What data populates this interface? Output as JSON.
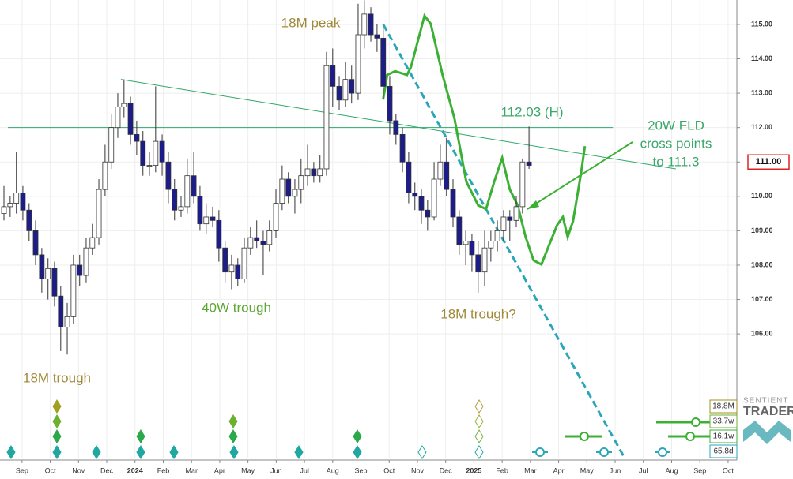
{
  "chart_data": {
    "type": "candlestick",
    "xlim": [
      -0.78,
      25.31
    ],
    "ylim": [
      102.4,
      115.71
    ],
    "grid": true,
    "xticks": [
      {
        "value": 0,
        "label": "Sep"
      },
      {
        "value": 1,
        "label": "Oct"
      },
      {
        "value": 2,
        "label": "Nov"
      },
      {
        "value": 3,
        "label": "Dec"
      },
      {
        "value": 4,
        "label": "2024"
      },
      {
        "value": 5,
        "label": "Feb"
      },
      {
        "value": 6,
        "label": "Mar"
      },
      {
        "value": 7,
        "label": "Apr"
      },
      {
        "value": 8,
        "label": "May"
      },
      {
        "value": 9,
        "label": "Jun"
      },
      {
        "value": 10,
        "label": "Jul"
      },
      {
        "value": 11,
        "label": "Aug"
      },
      {
        "value": 12,
        "label": "Sep"
      },
      {
        "value": 13,
        "label": "Oct"
      },
      {
        "value": 14,
        "label": "Nov"
      },
      {
        "value": 15,
        "label": "Dec"
      },
      {
        "value": 16,
        "label": "2025"
      },
      {
        "value": 17,
        "label": "Feb"
      },
      {
        "value": 18,
        "label": "Mar"
      },
      {
        "value": 19,
        "label": "Apr"
      },
      {
        "value": 20,
        "label": "May"
      },
      {
        "value": 21,
        "label": "Jun"
      },
      {
        "value": 22,
        "label": "Jul"
      },
      {
        "value": 23,
        "label": "Aug"
      },
      {
        "value": 24,
        "label": "Sep"
      },
      {
        "value": 25,
        "label": "Oct"
      }
    ],
    "yticks": [
      {
        "value": 106,
        "label": "106.00"
      },
      {
        "value": 107,
        "label": "107.00"
      },
      {
        "value": 108,
        "label": "108.00"
      },
      {
        "value": 109,
        "label": "109.00"
      },
      {
        "value": 110,
        "label": "110.00"
      },
      {
        "value": 111,
        "label": "111.00"
      },
      {
        "value": 112,
        "label": "112.00"
      },
      {
        "value": 113,
        "label": "113.00"
      },
      {
        "value": 114,
        "label": "114.00"
      },
      {
        "value": 115,
        "label": "115.00"
      }
    ],
    "last_price": {
      "value": 111.0,
      "label": "111.00"
    },
    "up_color": "#ffffff",
    "down_color": "#1c1c8a",
    "ohlc": [
      [
        -0.64,
        109.5,
        110.3,
        109.3,
        109.7
      ],
      [
        -0.42,
        109.7,
        110.0,
        109.4,
        109.8
      ],
      [
        -0.2,
        109.8,
        111.3,
        109.5,
        110.1
      ],
      [
        0.03,
        110.1,
        110.3,
        109.3,
        109.6
      ],
      [
        0.25,
        109.6,
        109.8,
        108.7,
        109.0
      ],
      [
        0.48,
        109.0,
        109.3,
        108.0,
        108.3
      ],
      [
        0.7,
        108.3,
        108.5,
        107.2,
        107.6
      ],
      [
        0.92,
        107.6,
        108.2,
        107.0,
        107.9
      ],
      [
        1.15,
        107.9,
        108.1,
        106.8,
        107.1
      ],
      [
        1.37,
        107.1,
        107.4,
        105.5,
        106.2
      ],
      [
        1.6,
        106.2,
        106.9,
        105.4,
        106.5
      ],
      [
        1.82,
        106.5,
        108.3,
        106.3,
        108.0
      ],
      [
        2.04,
        108.0,
        108.3,
        107.4,
        107.7
      ],
      [
        2.27,
        107.7,
        108.8,
        107.5,
        108.5
      ],
      [
        2.49,
        108.5,
        109.2,
        108.3,
        108.8
      ],
      [
        2.72,
        108.8,
        110.5,
        108.6,
        110.2
      ],
      [
        2.94,
        110.2,
        111.5,
        110.0,
        111.0
      ],
      [
        3.16,
        111.0,
        112.4,
        110.8,
        112.0
      ],
      [
        3.39,
        112.0,
        113.0,
        111.7,
        112.6
      ],
      [
        3.61,
        112.6,
        113.4,
        112.3,
        112.7
      ],
      [
        3.84,
        112.7,
        112.9,
        111.5,
        111.8
      ],
      [
        4.06,
        111.8,
        112.2,
        111.2,
        111.6
      ],
      [
        4.28,
        111.6,
        111.9,
        110.6,
        110.9
      ],
      [
        4.51,
        110.9,
        111.3,
        110.6,
        110.9
      ],
      [
        4.73,
        110.9,
        113.2,
        110.7,
        111.6
      ],
      [
        4.96,
        111.6,
        111.8,
        110.6,
        111.0
      ],
      [
        5.18,
        111.0,
        111.3,
        109.8,
        110.2
      ],
      [
        5.4,
        110.2,
        110.5,
        109.3,
        109.6
      ],
      [
        5.63,
        109.6,
        110.0,
        109.4,
        109.7
      ],
      [
        5.85,
        109.7,
        111.1,
        109.5,
        110.6
      ],
      [
        6.08,
        110.6,
        111.3,
        109.8,
        110.0
      ],
      [
        6.3,
        110.0,
        110.3,
        109.0,
        109.2
      ],
      [
        6.52,
        109.2,
        109.8,
        108.9,
        109.4
      ],
      [
        6.75,
        109.4,
        109.7,
        109.1,
        109.3
      ],
      [
        6.97,
        109.3,
        109.6,
        108.1,
        108.5
      ],
      [
        7.19,
        108.5,
        108.7,
        107.5,
        107.8
      ],
      [
        7.42,
        107.8,
        108.3,
        107.3,
        108.0
      ],
      [
        7.64,
        108.0,
        108.2,
        107.4,
        107.6
      ],
      [
        7.87,
        107.6,
        108.8,
        107.5,
        108.5
      ],
      [
        8.09,
        108.5,
        109.1,
        108.3,
        108.8
      ],
      [
        8.31,
        108.8,
        109.3,
        108.5,
        108.7
      ],
      [
        8.54,
        108.7,
        109.0,
        107.7,
        108.6
      ],
      [
        8.76,
        108.6,
        109.3,
        108.4,
        109.0
      ],
      [
        8.99,
        109.0,
        110.2,
        108.8,
        109.8
      ],
      [
        9.21,
        109.8,
        110.9,
        109.6,
        110.5
      ],
      [
        9.43,
        110.5,
        110.7,
        109.8,
        110.0
      ],
      [
        9.66,
        110.0,
        110.5,
        109.5,
        110.2
      ],
      [
        9.88,
        110.2,
        111.1,
        109.8,
        110.6
      ],
      [
        10.11,
        110.6,
        111.5,
        110.3,
        110.8
      ],
      [
        10.33,
        110.8,
        111.0,
        110.4,
        110.6
      ],
      [
        10.55,
        110.6,
        111.2,
        110.4,
        110.8
      ],
      [
        10.78,
        110.8,
        114.2,
        110.6,
        113.8
      ],
      [
        11.0,
        113.8,
        114.3,
        112.6,
        113.2
      ],
      [
        11.23,
        113.2,
        113.5,
        112.5,
        112.8
      ],
      [
        11.45,
        112.8,
        113.9,
        112.6,
        113.4
      ],
      [
        11.67,
        113.4,
        113.8,
        112.7,
        113.0
      ],
      [
        11.9,
        113.0,
        115.6,
        112.8,
        114.7
      ],
      [
        12.12,
        114.7,
        115.7,
        114.3,
        115.3
      ],
      [
        12.35,
        115.3,
        115.5,
        114.5,
        114.7
      ],
      [
        12.57,
        114.7,
        115.0,
        114.2,
        114.6
      ],
      [
        12.79,
        114.6,
        114.9,
        112.8,
        113.2
      ],
      [
        13.02,
        113.2,
        113.5,
        111.8,
        112.2
      ],
      [
        13.24,
        112.2,
        112.4,
        111.5,
        111.8
      ],
      [
        13.47,
        111.8,
        112.0,
        110.7,
        111.0
      ],
      [
        13.69,
        111.0,
        111.3,
        109.8,
        110.1
      ],
      [
        13.91,
        110.1,
        110.4,
        109.6,
        110.0
      ],
      [
        14.14,
        110.0,
        110.2,
        109.2,
        109.6
      ],
      [
        14.36,
        109.6,
        109.9,
        109.0,
        109.4
      ],
      [
        14.59,
        109.4,
        111.0,
        109.3,
        110.5
      ],
      [
        14.81,
        110.5,
        111.5,
        110.3,
        111.0
      ],
      [
        15.03,
        111.0,
        111.7,
        110.0,
        110.2
      ],
      [
        15.26,
        110.2,
        110.5,
        109.1,
        109.4
      ],
      [
        15.48,
        109.4,
        109.6,
        108.3,
        108.6
      ],
      [
        15.71,
        108.6,
        109.0,
        108.0,
        108.7
      ],
      [
        15.93,
        108.7,
        108.9,
        107.8,
        108.3
      ],
      [
        16.15,
        108.3,
        108.7,
        107.2,
        107.8
      ],
      [
        16.38,
        107.8,
        109.0,
        107.4,
        108.5
      ],
      [
        16.6,
        108.5,
        109.0,
        108.1,
        108.7
      ],
      [
        16.83,
        108.7,
        109.3,
        108.4,
        109.0
      ],
      [
        17.05,
        109.0,
        109.6,
        108.7,
        109.4
      ],
      [
        17.27,
        109.4,
        109.6,
        108.7,
        109.3
      ],
      [
        17.5,
        109.3,
        110.0,
        109.1,
        109.7
      ],
      [
        17.72,
        109.7,
        111.1,
        109.5,
        111.0
      ],
      [
        17.95,
        111.0,
        112.03,
        110.8,
        110.9
      ]
    ],
    "lines": [
      {
        "color": "#2ea86a",
        "width": 1,
        "dash": false,
        "x": [
          -0.5,
          20.92
        ],
        "y": [
          112.0,
          112.0
        ]
      },
      {
        "color": "#2ea86a",
        "width": 1,
        "dash": false,
        "x": [
          3.5,
          23.15
        ],
        "y": [
          113.4,
          110.8
        ]
      },
      {
        "color": "#2aa6b8",
        "width": 3,
        "dash": true,
        "x": [
          12.79,
          21.33
        ],
        "y": [
          115.0,
          102.4
        ]
      },
      {
        "color": "#3cb034",
        "width": 3,
        "dash": false,
        "x": [
          12.79,
          12.93,
          13.21,
          13.63,
          13.77,
          14.25,
          14.47,
          14.89,
          15.31,
          15.73,
          16.15,
          16.43,
          16.72,
          17.0,
          17.27,
          17.55,
          17.83,
          18.11,
          18.39,
          18.67,
          18.95,
          19.15,
          19.32,
          19.51,
          19.79,
          19.93
        ],
        "y": [
          112.84,
          113.53,
          113.64,
          113.53,
          113.76,
          115.25,
          115.02,
          113.53,
          112.27,
          110.43,
          109.74,
          109.63,
          110.43,
          111.12,
          110.2,
          109.74,
          108.82,
          108.14,
          108.02,
          108.6,
          109.17,
          109.4,
          108.82,
          109.28,
          110.66,
          111.46
        ]
      }
    ],
    "annotations": [
      "18M peak",
      "40W trough",
      "18M trough",
      "18M trough?",
      "112.03 (H)",
      [
        "20W FLD",
        "cross points",
        "to 111.3"
      ]
    ],
    "cycle_labels": [
      "18.8M",
      "33.7w",
      "16.1w",
      "65.8d"
    ],
    "logo": [
      "SENTIENT",
      "TRADER"
    ]
  }
}
